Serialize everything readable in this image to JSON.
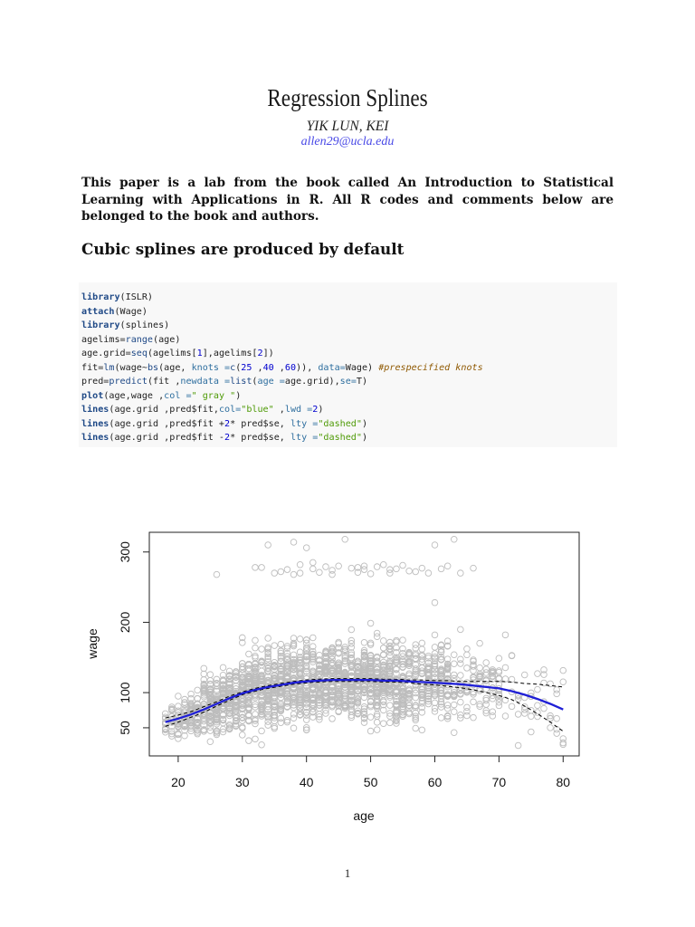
{
  "paper": {
    "title": "Regression Splines",
    "author": "YIK LUN, KEI",
    "email": "allen29@ucla.edu",
    "intro": "This paper is a lab from the book called An Introduction to Statistical Learning with Applications in R. All R codes and comments below are belonged to the book and authors.",
    "section_heading": "Cubic splines are produced by default",
    "page_number": "1"
  },
  "code": [
    [
      {
        "t": "library",
        "c": "k"
      },
      {
        "t": "(ISLR)",
        "c": "p"
      }
    ],
    [
      {
        "t": "attach",
        "c": "k"
      },
      {
        "t": "(Wage)",
        "c": "p"
      }
    ],
    [
      {
        "t": "library",
        "c": "k"
      },
      {
        "t": "(splines)",
        "c": "p"
      }
    ],
    [
      {
        "t": "agelims=",
        "c": "p"
      },
      {
        "t": "range",
        "c": "f"
      },
      {
        "t": "(age)",
        "c": "p"
      }
    ],
    [
      {
        "t": "age.grid=",
        "c": "p"
      },
      {
        "t": "seq",
        "c": "f"
      },
      {
        "t": "(agelims[",
        "c": "p"
      },
      {
        "t": "1",
        "c": "n"
      },
      {
        "t": "],agelims[",
        "c": "p"
      },
      {
        "t": "2",
        "c": "n"
      },
      {
        "t": "])",
        "c": "p"
      }
    ],
    [
      {
        "t": "fit=",
        "c": "p"
      },
      {
        "t": "lm",
        "c": "f"
      },
      {
        "t": "(wage~",
        "c": "p"
      },
      {
        "t": "bs",
        "c": "f"
      },
      {
        "t": "(age, ",
        "c": "p"
      },
      {
        "t": "knots =",
        "c": "a"
      },
      {
        "t": "c",
        "c": "f"
      },
      {
        "t": "(",
        "c": "p"
      },
      {
        "t": "25",
        "c": "n"
      },
      {
        "t": " ,",
        "c": "p"
      },
      {
        "t": "40",
        "c": "n"
      },
      {
        "t": " ,",
        "c": "p"
      },
      {
        "t": "60",
        "c": "n"
      },
      {
        "t": ")), ",
        "c": "p"
      },
      {
        "t": "data=",
        "c": "a"
      },
      {
        "t": "Wage) ",
        "c": "p"
      },
      {
        "t": "#prespecified knots",
        "c": "c"
      }
    ],
    [
      {
        "t": "pred=",
        "c": "p"
      },
      {
        "t": "predict",
        "c": "f"
      },
      {
        "t": "(fit ,",
        "c": "p"
      },
      {
        "t": "newdata =",
        "c": "a"
      },
      {
        "t": "list",
        "c": "f"
      },
      {
        "t": "(",
        "c": "p"
      },
      {
        "t": "age =",
        "c": "a"
      },
      {
        "t": "age.grid),",
        "c": "p"
      },
      {
        "t": "se=",
        "c": "a"
      },
      {
        "t": "T)",
        "c": "p"
      }
    ],
    [
      {
        "t": "plot",
        "c": "k"
      },
      {
        "t": "(age,wage ,",
        "c": "p"
      },
      {
        "t": "col =",
        "c": "a"
      },
      {
        "t": "\" gray \"",
        "c": "s"
      },
      {
        "t": ")",
        "c": "p"
      }
    ],
    [
      {
        "t": "lines",
        "c": "k"
      },
      {
        "t": "(age.grid ,pred$fit,",
        "c": "p"
      },
      {
        "t": "col=",
        "c": "a"
      },
      {
        "t": "\"blue\"",
        "c": "s"
      },
      {
        "t": " ,",
        "c": "p"
      },
      {
        "t": "lwd =",
        "c": "a"
      },
      {
        "t": "2",
        "c": "n"
      },
      {
        "t": ")",
        "c": "p"
      }
    ],
    [
      {
        "t": "lines",
        "c": "k"
      },
      {
        "t": "(age.grid ,pred$fit +",
        "c": "p"
      },
      {
        "t": "2",
        "c": "n"
      },
      {
        "t": "* pred$se, ",
        "c": "p"
      },
      {
        "t": "lty =",
        "c": "a"
      },
      {
        "t": "\"dashed\"",
        "c": "s"
      },
      {
        "t": ")",
        "c": "p"
      }
    ],
    [
      {
        "t": "lines",
        "c": "k"
      },
      {
        "t": "(age.grid ,pred$fit -",
        "c": "p"
      },
      {
        "t": "2",
        "c": "n"
      },
      {
        "t": "* pred$se, ",
        "c": "p"
      },
      {
        "t": "lty =",
        "c": "a"
      },
      {
        "t": "\"dashed\"",
        "c": "s"
      },
      {
        "t": ")",
        "c": "p"
      }
    ]
  ],
  "chart_data": {
    "type": "scatter",
    "xlabel": "age",
    "ylabel": "wage",
    "xlim": [
      15.5,
      82.5
    ],
    "ylim": [
      10,
      328
    ],
    "x_ticks": [
      20,
      30,
      40,
      50,
      60,
      70,
      80
    ],
    "y_ticks": [
      50,
      100,
      200,
      300
    ],
    "grid": false,
    "points_color": "#bdbdbd",
    "points_style": "open circles",
    "fit_color": "#1f1fd6",
    "band_color": "#000000",
    "fit": {
      "x": [
        18,
        20,
        22,
        24,
        26,
        28,
        30,
        32,
        34,
        36,
        38,
        40,
        42,
        44,
        46,
        48,
        50,
        52,
        54,
        56,
        58,
        60,
        62,
        64,
        66,
        68,
        70,
        72,
        74,
        76,
        78,
        80
      ],
      "y": [
        58,
        63,
        69,
        76,
        84,
        92,
        99,
        104,
        108,
        111,
        114,
        116,
        117,
        118,
        118,
        118,
        118,
        117,
        117,
        116,
        115,
        114,
        113,
        112,
        110,
        108,
        106,
        102,
        97,
        91,
        84,
        76
      ],
      "upper": [
        64,
        68,
        73,
        80,
        87,
        95,
        101,
        106,
        110,
        113,
        116,
        118,
        119,
        120,
        120,
        120,
        120,
        119,
        119,
        118,
        118,
        117,
        117,
        116,
        116,
        116,
        116,
        115,
        113,
        112,
        110,
        108
      ],
      "lower": [
        52,
        58,
        65,
        72,
        81,
        89,
        97,
        102,
        106,
        109,
        112,
        114,
        115,
        116,
        116,
        116,
        116,
        115,
        115,
        114,
        112,
        111,
        109,
        107,
        104,
        100,
        96,
        90,
        81,
        70,
        58,
        45
      ]
    },
    "high_earners": {
      "x": [
        26,
        32,
        33,
        34,
        35,
        36,
        37,
        38,
        38,
        39,
        39,
        40,
        41,
        41,
        42,
        43,
        44,
        44,
        45,
        46,
        47,
        48,
        48,
        49,
        49,
        50,
        51,
        52,
        53,
        53,
        54,
        55,
        56,
        57,
        58,
        59,
        60,
        61,
        62,
        63,
        64,
        66,
        60
      ],
      "y": [
        268,
        278,
        278,
        310,
        270,
        272,
        275,
        314,
        268,
        282,
        270,
        306,
        276,
        285,
        271,
        279,
        274,
        268,
        280,
        318,
        277,
        271,
        278,
        275,
        280,
        269,
        279,
        282,
        275,
        270,
        276,
        281,
        273,
        272,
        277,
        270,
        310,
        276,
        280,
        318,
        270,
        277,
        228
      ]
    }
  }
}
